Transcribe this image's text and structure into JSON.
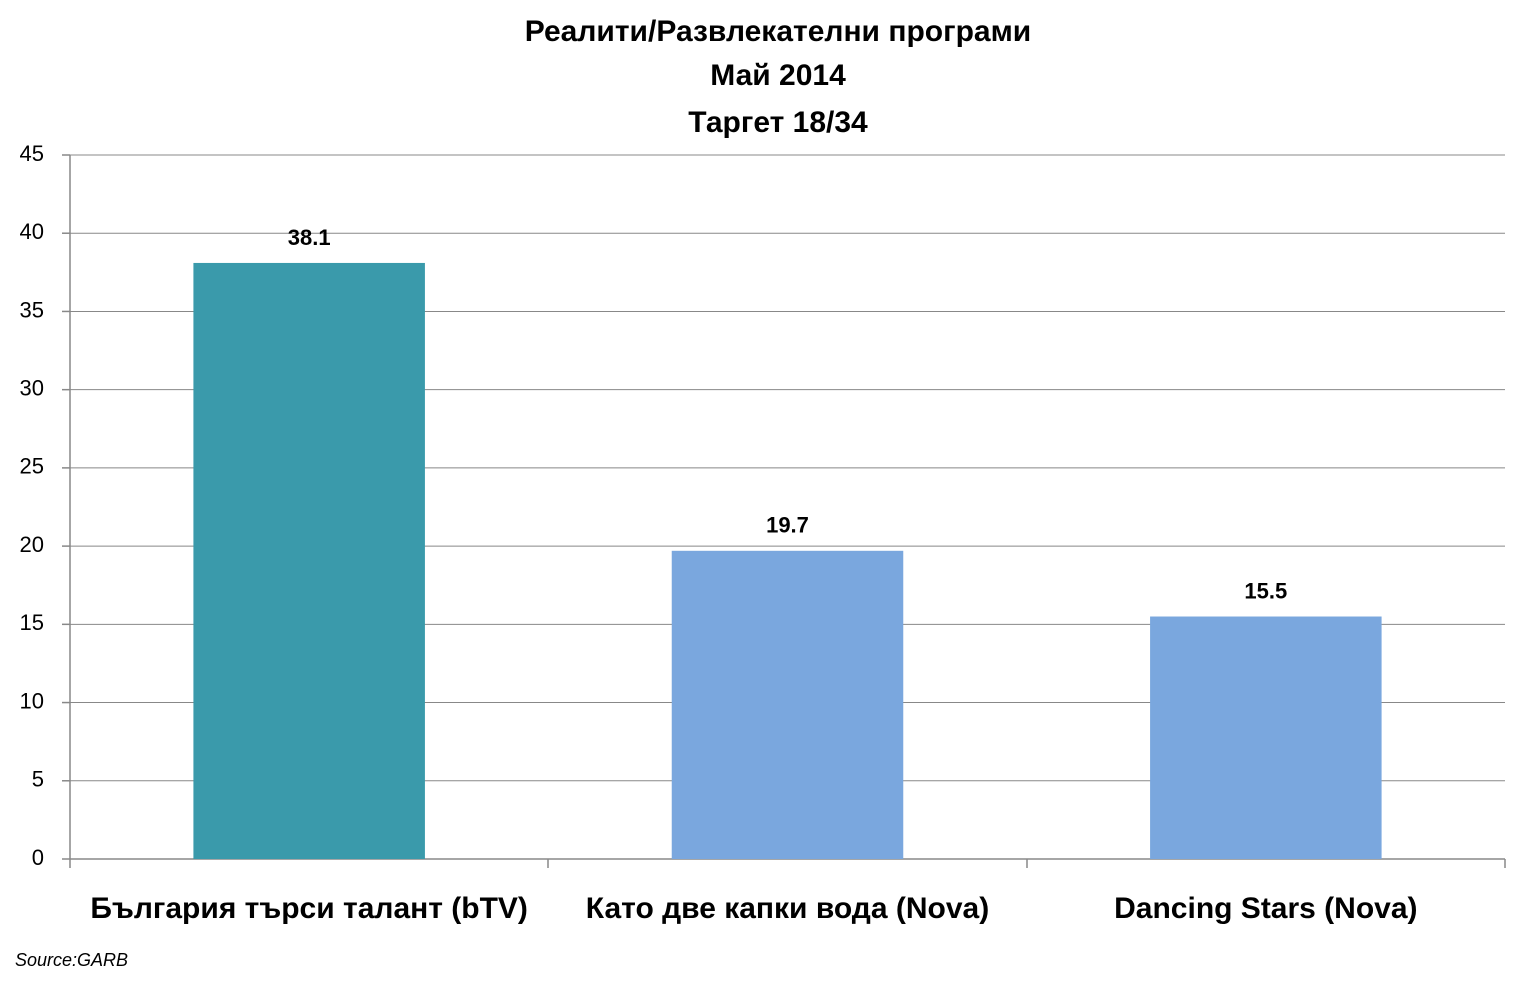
{
  "chart_data": {
    "type": "bar",
    "title": [
      "Реалити/Развлекателни програми",
      "Май 2014",
      "Таргет 18/34"
    ],
    "categories": [
      "България търси талант (bTV)",
      "Като две капки вода (Nova)",
      "Dancing Stars (Nova)"
    ],
    "values": [
      38.1,
      19.7,
      15.5
    ],
    "colors": [
      "#3a9aab",
      "#7aa7de",
      "#7aa7de"
    ],
    "ylim": [
      0,
      45
    ],
    "yticks": [
      0,
      5,
      10,
      15,
      20,
      25,
      30,
      35,
      40,
      45
    ],
    "grid": true,
    "source": "Source:GARB"
  }
}
